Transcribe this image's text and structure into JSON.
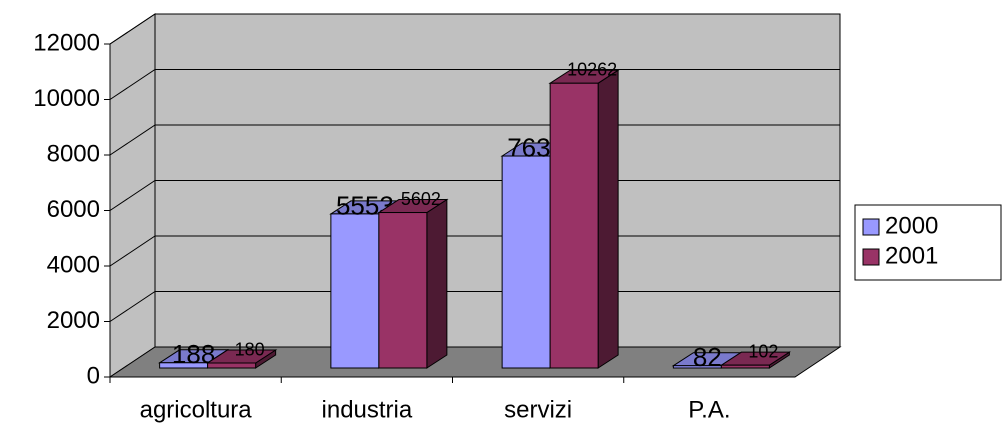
{
  "chart_data": {
    "type": "bar3d",
    "categories": [
      "agricoltura",
      "industria",
      "servizi",
      "P.A."
    ],
    "series": [
      {
        "name": "2000",
        "color": "#9999ff",
        "values": [
          188,
          5553,
          7639,
          82
        ]
      },
      {
        "name": "2001",
        "color": "#993366",
        "values": [
          180,
          5602,
          10262,
          102
        ]
      }
    ],
    "ylim": [
      0,
      12000
    ],
    "yticks": [
      0,
      2000,
      4000,
      6000,
      8000,
      10000,
      12000
    ],
    "grid": true,
    "legend": "right"
  }
}
